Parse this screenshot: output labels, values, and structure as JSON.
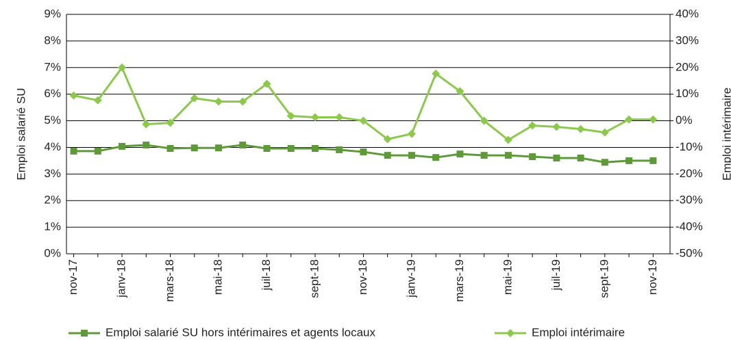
{
  "chart_data": {
    "type": "line",
    "categories": [
      "nov-17",
      null,
      "janv-18",
      null,
      "mars-18",
      null,
      "mai-18",
      null,
      "juil-18",
      null,
      "sept-18",
      null,
      "nov-18",
      null,
      "janv-19",
      null,
      "mars-19",
      null,
      "mai-19",
      null,
      "juil-19",
      null,
      "sept-19",
      null,
      "nov-19"
    ],
    "series": [
      {
        "name": "Emploi salarié SU hors intérimaires et agents locaux",
        "color": "#5e9a3a",
        "marker": "square",
        "values": [
          3.86,
          3.86,
          4.04,
          4.09,
          3.96,
          3.98,
          3.98,
          4.09,
          3.96,
          3.96,
          3.96,
          3.91,
          3.83,
          3.7,
          3.7,
          3.62,
          3.75,
          3.7,
          3.7,
          3.65,
          3.6,
          3.6,
          3.44,
          3.5,
          3.5
        ]
      },
      {
        "name": "Emploi intérimaire",
        "color": "#8cc84b",
        "marker": "diamond",
        "axis": "y2",
        "values": [
          9.5,
          7.7,
          20,
          -1.3,
          -0.8,
          8.5,
          7.2,
          7.2,
          13.9,
          1.8,
          1.3,
          1.3,
          0,
          -6.9,
          -4.9,
          17.7,
          11.1,
          0,
          -7.2,
          -1.8,
          -2.3,
          -3.1,
          -4.4,
          0.5,
          0.5
        ]
      }
    ],
    "y_label": "Emploi salarié SU",
    "y2_label": "Emploi intérimaire",
    "ylim": [
      0,
      9
    ],
    "yticks": [
      {
        "value": 0,
        "label": "0%"
      },
      {
        "value": 1,
        "label": "1%"
      },
      {
        "value": 2,
        "label": "2%"
      },
      {
        "value": 3,
        "label": "3%"
      },
      {
        "value": 4,
        "label": "4%"
      },
      {
        "value": 5,
        "label": "5%"
      },
      {
        "value": 6,
        "label": "6%"
      },
      {
        "value": 7,
        "label": "7%"
      },
      {
        "value": 8,
        "label": "8%"
      },
      {
        "value": 9,
        "label": "9%"
      }
    ],
    "y2lim": [
      -50,
      40
    ],
    "y2ticks": [
      {
        "value": -50,
        "label": "-50%"
      },
      {
        "value": -40,
        "label": "-40%"
      },
      {
        "value": -30,
        "label": "-30%"
      },
      {
        "value": -20,
        "label": "-20%"
      },
      {
        "value": -10,
        "label": "-10%"
      },
      {
        "value": 0,
        "label": "0%"
      },
      {
        "value": 10,
        "label": "10%"
      },
      {
        "value": 20,
        "label": "20%"
      },
      {
        "value": 30,
        "label": "30%"
      },
      {
        "value": 40,
        "label": "40%"
      }
    ],
    "grid": true,
    "legend": "bottom"
  }
}
